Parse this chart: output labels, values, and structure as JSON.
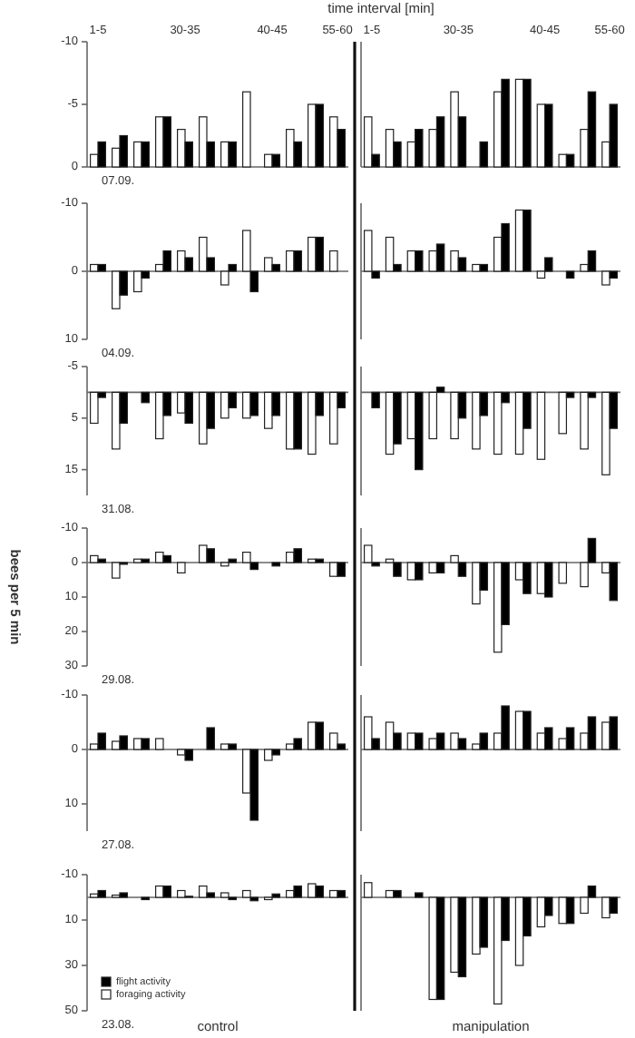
{
  "chart_data": [
    {
      "type": "bar",
      "title": "07.09.",
      "xlabel": "time interval [min]",
      "categories": [
        "1-5",
        null,
        null,
        null,
        "30-35",
        null,
        null,
        null,
        "40-45",
        null,
        null,
        "55-60"
      ],
      "ylim": [
        0,
        -10
      ],
      "yticks": [
        -10,
        -5,
        0
      ],
      "series": [
        {
          "color": "#ffffff",
          "values": [
            -1,
            -1.5,
            -2,
            -4,
            -3,
            -4,
            -2,
            -6,
            -1,
            -3,
            -5,
            -4
          ]
        },
        {
          "color": "#000000",
          "values": [
            -2,
            -2.5,
            -2,
            -4,
            -2,
            -2,
            -2,
            0,
            -1,
            -2,
            -5,
            -3
          ]
        }
      ]
    },
    {
      "type": "bar",
      "categories": [
        "1-5",
        null,
        null,
        null,
        "30-35",
        null,
        null,
        null,
        "40-45",
        null,
        null,
        "55-60"
      ],
      "ylim": [
        0,
        -10
      ],
      "yticks": [
        -10,
        -5,
        0
      ],
      "tick_labels": "x",
      "series": [
        {
          "color": "#ffffff",
          "values": [
            -4,
            -3,
            -2,
            -3,
            -6,
            0,
            -6,
            -7,
            -5,
            -1,
            -3,
            -2
          ]
        },
        {
          "color": "#000000",
          "values": [
            -1,
            -2,
            -3,
            -4,
            -4,
            -2,
            -7,
            -7,
            -5,
            -1,
            -6,
            -5
          ]
        }
      ]
    },
    {
      "type": "bar",
      "title": "04.09.",
      "categories": [
        null,
        null,
        null,
        null,
        null,
        null,
        null,
        null,
        null,
        null,
        null,
        null
      ],
      "ylim": [
        10,
        -10
      ],
      "yticks": [
        -10,
        0,
        10
      ],
      "tick_labels": "y",
      "series": [
        {
          "color": "#ffffff",
          "values": [
            -1,
            5.5,
            3,
            -1,
            -3,
            -5,
            2,
            -6,
            -2,
            -3,
            -5,
            -3
          ]
        },
        {
          "color": "#000000",
          "values": [
            -1,
            3.5,
            1,
            -3,
            -2,
            -2,
            -1,
            3,
            -1,
            -3,
            -5,
            0
          ]
        }
      ]
    },
    {
      "type": "bar",
      "categories": [
        null,
        null,
        null,
        null,
        null,
        null,
        null,
        null,
        null,
        null,
        null,
        null
      ],
      "ylim": [
        10,
        -10
      ],
      "yticks": [
        -10,
        0,
        10
      ],
      "tick_labels": false,
      "series": [
        {
          "color": "#ffffff",
          "values": [
            -6,
            -5,
            -3,
            -3,
            -3,
            -1,
            -5,
            -9,
            1,
            0,
            -1,
            2
          ]
        },
        {
          "color": "#000000",
          "values": [
            1,
            -1,
            -3,
            -4,
            -2,
            -1,
            -7,
            -9,
            -2,
            1,
            -3,
            1
          ]
        }
      ]
    },
    {
      "type": "bar",
      "title": "31.08.",
      "categories": [
        null,
        null,
        null,
        null,
        null,
        null,
        null,
        null,
        null,
        null,
        null,
        null
      ],
      "ylim": [
        20,
        -5
      ],
      "yticks": [
        -5,
        5,
        15
      ],
      "tick_labels": "y",
      "series": [
        {
          "color": "#ffffff",
          "values": [
            6,
            11,
            0,
            9,
            4,
            10,
            5,
            5,
            7,
            11,
            12,
            10
          ]
        },
        {
          "color": "#000000",
          "values": [
            1,
            6,
            2,
            4.5,
            6,
            7,
            3,
            4.5,
            4.5,
            11,
            4.5,
            3
          ]
        }
      ]
    },
    {
      "type": "bar",
      "categories": [
        null,
        null,
        null,
        null,
        null,
        null,
        null,
        null,
        null,
        null,
        null,
        null
      ],
      "ylim": [
        20,
        -5
      ],
      "yticks": [
        -5,
        5,
        15
      ],
      "tick_labels": false,
      "series": [
        {
          "color": "#ffffff",
          "values": [
            0,
            12,
            9,
            9,
            9,
            11,
            12,
            12,
            13,
            8,
            11,
            16
          ]
        },
        {
          "color": "#000000",
          "values": [
            3,
            10,
            15,
            -1,
            5,
            4.5,
            2,
            7,
            0,
            1,
            1,
            7
          ]
        }
      ]
    },
    {
      "type": "bar",
      "title": "29.08.",
      "ylabel": "bees per 5 min",
      "categories": [
        null,
        null,
        null,
        null,
        null,
        null,
        null,
        null,
        null,
        null,
        null,
        null
      ],
      "ylim": [
        30,
        -10
      ],
      "yticks": [
        -10,
        0,
        10,
        20,
        30
      ],
      "tick_labels": "y",
      "series": [
        {
          "color": "#ffffff",
          "values": [
            -2,
            4.5,
            -1,
            -3,
            3,
            -5,
            1,
            -3,
            0,
            -3,
            -1,
            4
          ]
        },
        {
          "color": "#000000",
          "values": [
            -1,
            0.5,
            -1,
            -2,
            0,
            -4,
            -1,
            2,
            1,
            -4,
            -1,
            4
          ]
        }
      ]
    },
    {
      "type": "bar",
      "categories": [
        null,
        null,
        null,
        null,
        null,
        null,
        null,
        null,
        null,
        null,
        null,
        null
      ],
      "ylim": [
        30,
        -10
      ],
      "yticks": [
        -10,
        0,
        10,
        20,
        30
      ],
      "tick_labels": false,
      "series": [
        {
          "color": "#ffffff",
          "values": [
            -5,
            -1,
            5,
            3,
            -2,
            12,
            26,
            5,
            9,
            6,
            7,
            3
          ]
        },
        {
          "color": "#000000",
          "values": [
            1,
            4,
            5,
            3,
            4,
            8,
            18,
            9,
            10,
            0,
            -7,
            11
          ]
        }
      ]
    },
    {
      "type": "bar",
      "title": "27.08.",
      "categories": [
        null,
        null,
        null,
        null,
        null,
        null,
        null,
        null,
        null,
        null,
        null,
        null
      ],
      "ylim": [
        15,
        -10
      ],
      "yticks": [
        -10,
        0,
        10
      ],
      "tick_labels": "y",
      "series": [
        {
          "color": "#ffffff",
          "values": [
            -1,
            -1.5,
            -2,
            -2,
            1,
            0,
            -1,
            8,
            2,
            -1,
            -5,
            -3
          ]
        },
        {
          "color": "#000000",
          "values": [
            -3,
            -2.5,
            -2,
            0,
            2,
            -4,
            -1,
            13,
            1,
            -2,
            -5,
            -1
          ]
        }
      ]
    },
    {
      "type": "bar",
      "categories": [
        null,
        null,
        null,
        null,
        null,
        null,
        null,
        null,
        null,
        null,
        null,
        null
      ],
      "ylim": [
        15,
        -10
      ],
      "yticks": [
        -10,
        0,
        10
      ],
      "tick_labels": false,
      "series": [
        {
          "color": "#ffffff",
          "values": [
            -6,
            -5,
            -3,
            -2,
            -3,
            -1,
            -3,
            -7,
            -3,
            -2,
            -3,
            -5
          ]
        },
        {
          "color": "#000000",
          "values": [
            -2,
            -3,
            -3,
            -3,
            -2,
            -3,
            -8,
            -7,
            -4,
            -4,
            -6,
            -6
          ]
        }
      ]
    },
    {
      "type": "bar",
      "title": "23.08.",
      "annotations": [
        "control"
      ],
      "legend": "bottom left",
      "categories": [
        null,
        null,
        null,
        null,
        null,
        null,
        null,
        null,
        null,
        null,
        null,
        null
      ],
      "ylim": [
        50,
        -10
      ],
      "yticks": [
        -10,
        10,
        30,
        50
      ],
      "tick_labels": "y",
      "series": [
        {
          "name": "foraging activity",
          "color": "#ffffff",
          "values": [
            -1.5,
            -1,
            0,
            -5,
            -3,
            -5,
            -2,
            -3,
            1,
            -3,
            -6,
            -3
          ]
        },
        {
          "name": "flight activity",
          "color": "#000000",
          "values": [
            -3,
            -2,
            1,
            -5,
            -0.5,
            -2,
            1,
            1.5,
            -1.5,
            -5,
            -5,
            -3
          ]
        }
      ]
    },
    {
      "type": "bar",
      "annotations": [
        "manipulation"
      ],
      "categories": [
        null,
        null,
        null,
        null,
        null,
        null,
        null,
        null,
        null,
        null,
        null,
        null
      ],
      "ylim": [
        50,
        -10
      ],
      "yticks": [
        -10,
        10,
        30,
        50
      ],
      "tick_labels": false,
      "series": [
        {
          "color": "#ffffff",
          "values": [
            -6.5,
            -3,
            0,
            45,
            33,
            25,
            47,
            30,
            13,
            11.5,
            7,
            9
          ]
        },
        {
          "color": "#000000",
          "values": [
            0,
            -3,
            -2,
            45,
            35,
            22,
            19,
            17,
            8,
            11.5,
            -5,
            7
          ]
        }
      ]
    }
  ]
}
